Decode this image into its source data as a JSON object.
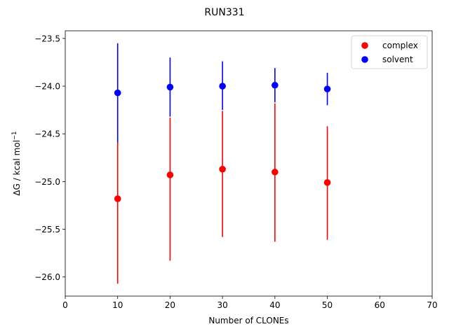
{
  "chart_data": {
    "type": "scatter",
    "title": "RUN331",
    "xlabel": "Number of CLONEs",
    "ylabel_main": "ΔG / kcal mol",
    "ylabel_sup": "−1",
    "xlim": [
      0,
      70
    ],
    "ylim": [
      -26.2,
      -23.42
    ],
    "xticks": [
      0,
      10,
      20,
      30,
      40,
      50,
      60,
      70
    ],
    "xtick_labels": [
      "0",
      "10",
      "20",
      "30",
      "40",
      "50",
      "60",
      "70"
    ],
    "yticks": [
      -23.5,
      -24.0,
      -24.5,
      -25.0,
      -25.5,
      -26.0
    ],
    "ytick_labels": [
      "−23.5",
      "−24.0",
      "−24.5",
      "−25.0",
      "−25.5",
      "−26.0"
    ],
    "grid": false,
    "legend_position": "top-right",
    "series": [
      {
        "name": "complex",
        "color": "#ff0000",
        "x": [
          10,
          20,
          30,
          40,
          50
        ],
        "y": [
          -25.18,
          -24.93,
          -24.87,
          -24.9,
          -25.01
        ],
        "err_low": [
          -26.07,
          -25.83,
          -25.58,
          -25.63,
          -25.61
        ],
        "err_high": [
          -24.59,
          -24.33,
          -24.26,
          -24.18,
          -24.42
        ]
      },
      {
        "name": "solvent",
        "color": "#0000ff",
        "x": [
          10,
          20,
          30,
          40,
          50
        ],
        "y": [
          -24.07,
          -24.01,
          -24.0,
          -23.99,
          -24.03
        ],
        "err_low": [
          -24.59,
          -24.32,
          -24.25,
          -24.17,
          -24.2
        ],
        "err_high": [
          -23.55,
          -23.7,
          -23.74,
          -23.81,
          -23.86
        ]
      }
    ]
  }
}
